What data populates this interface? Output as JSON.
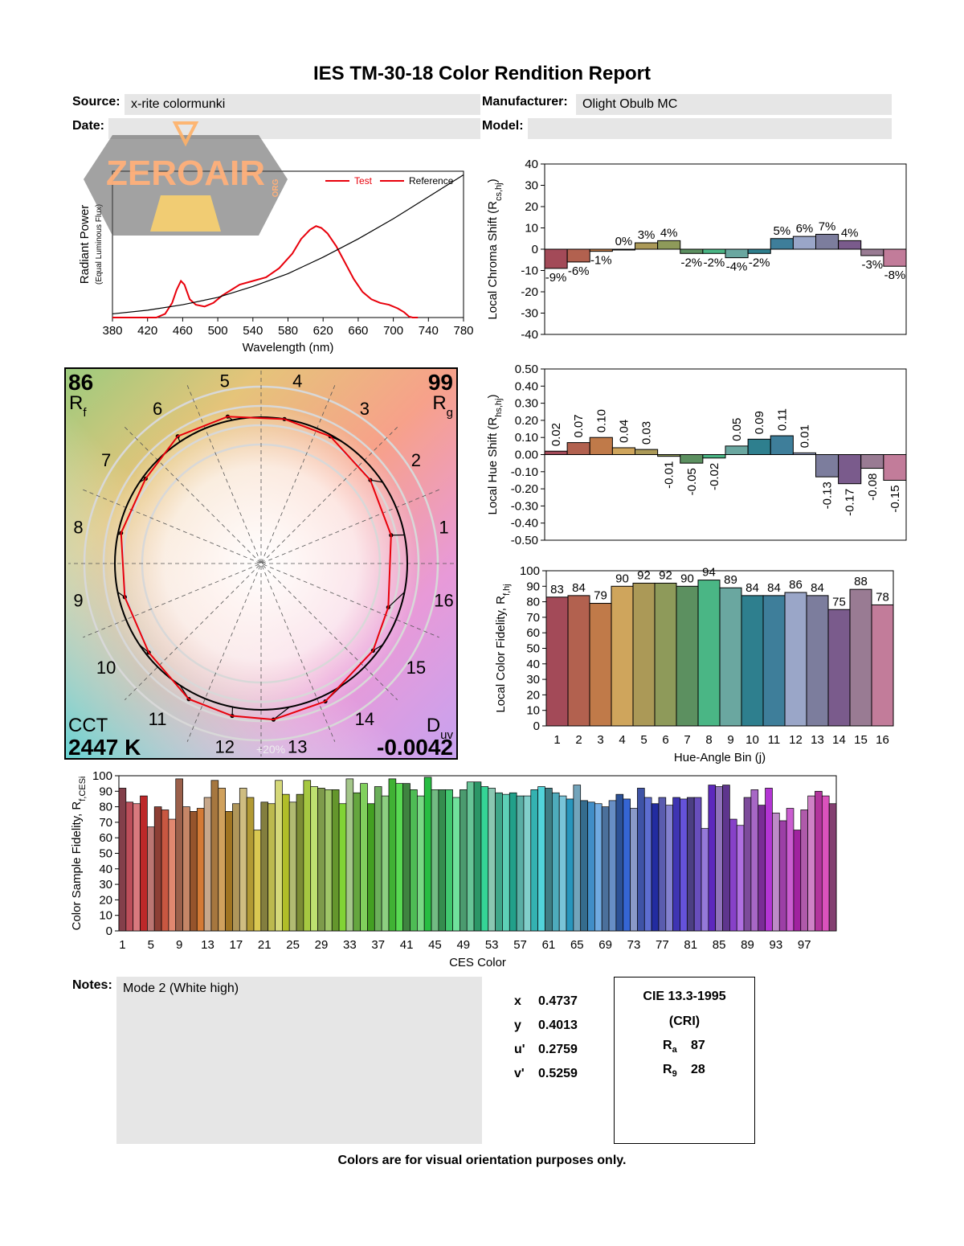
{
  "report": {
    "title": "IES TM-30-18 Color Rendition Report",
    "source_label": "Source:",
    "source_value": "x-rite colormunki",
    "manufacturer_label": "Manufacturer:",
    "manufacturer_value": "Olight Obulb MC",
    "date_label": "Date:",
    "date_value": "",
    "model_label": "Model:",
    "model_value": "",
    "watermark_text": "ZEROAIR",
    "watermark_subtext": "ORG",
    "notes_label": "Notes:",
    "notes_value": "Mode 2 (White high)",
    "footer": "Colors are for visual orientation purposes only."
  },
  "chromaticity": {
    "x_label": "x",
    "x_value": "0.4737",
    "y_label": "y",
    "y_value": "0.4013",
    "u_label": "u'",
    "u_value": "0.2759",
    "v_label": "v'",
    "v_value": "0.5259"
  },
  "cri": {
    "title": "CIE 13.3-1995",
    "subtitle": "(CRI)",
    "ra_label": "R",
    "ra_sub": "a",
    "ra_value": "87",
    "r9_label": "R",
    "r9_sub": "9",
    "r9_value": "28"
  },
  "vector_graphic": {
    "rf_value": "86",
    "rf_label": "R",
    "rf_sub": "f",
    "rg_value": "99",
    "rg_label": "R",
    "rg_sub": "g",
    "cct_label": "CCT",
    "cct_value": "2447 K",
    "duv_label": "D",
    "duv_sub": "uv",
    "duv_value": "-0.0042",
    "ring_label": "+20%",
    "bin_labels": [
      "1",
      "2",
      "3",
      "4",
      "5",
      "6",
      "7",
      "8",
      "9",
      "10",
      "11",
      "12",
      "13",
      "14",
      "15",
      "16"
    ]
  },
  "chart_data": [
    {
      "type": "line",
      "id": "spd",
      "xlabel": "Wavelength (nm)",
      "ylabel": "Radiant Power",
      "ylabel2": "(Equal Luminous Flux)",
      "xlim": [
        380,
        780
      ],
      "xticks": [
        380,
        420,
        460,
        500,
        540,
        580,
        620,
        660,
        700,
        740,
        780
      ],
      "legend": "top-right",
      "series": [
        {
          "name": "Test",
          "color": "#e8000b",
          "x": [
            380,
            430,
            440,
            448,
            453,
            458,
            462,
            468,
            475,
            485,
            495,
            505,
            515,
            525,
            540,
            555,
            570,
            585,
            595,
            605,
            612,
            618,
            625,
            635,
            645,
            655,
            665,
            675,
            685,
            695,
            705,
            712,
            718,
            722,
            728
          ],
          "y": [
            0,
            0,
            0.02,
            0.08,
            0.15,
            0.2,
            0.18,
            0.1,
            0.07,
            0.06,
            0.08,
            0.12,
            0.15,
            0.18,
            0.2,
            0.22,
            0.27,
            0.35,
            0.43,
            0.48,
            0.5,
            0.49,
            0.46,
            0.39,
            0.3,
            0.21,
            0.14,
            0.1,
            0.08,
            0.07,
            0.05,
            0.03,
            0.005,
            0,
            0
          ]
        },
        {
          "name": "Reference",
          "color": "#000000",
          "x": [
            380,
            420,
            460,
            500,
            540,
            580,
            620,
            660,
            700,
            740,
            780
          ],
          "y": [
            0.02,
            0.04,
            0.07,
            0.11,
            0.17,
            0.24,
            0.33,
            0.43,
            0.54,
            0.66,
            0.78
          ]
        }
      ]
    },
    {
      "type": "bar",
      "id": "chroma_shift",
      "ylabel": "Local Chroma Shift (R",
      "ylabel_sub": "cs,hj",
      "ylabel_end": ")",
      "ylim": [
        -40,
        40
      ],
      "yticks": [
        40,
        30,
        20,
        10,
        0,
        -10,
        -20,
        -30,
        -40
      ],
      "categories": [
        "1",
        "2",
        "3",
        "4",
        "5",
        "6",
        "7",
        "8",
        "9",
        "10",
        "11",
        "12",
        "13",
        "14",
        "15",
        "16"
      ],
      "values": [
        -9,
        -6,
        -1,
        0,
        3,
        4,
        -2,
        -2,
        -4,
        -2,
        5,
        6,
        7,
        4,
        -3,
        -8
      ],
      "labels": [
        "-9%",
        "-6%",
        "-1%",
        "0%",
        "3%",
        "4%",
        "-2%",
        "-2%",
        "-4%",
        "-2%",
        "5%",
        "6%",
        "7%",
        "4%",
        "-3%",
        "-8%"
      ]
    },
    {
      "type": "bar",
      "id": "hue_shift",
      "ylabel": "Local Hue Shift (R",
      "ylabel_sub": "hs,hj",
      "ylabel_end": ")",
      "ylim": [
        -0.5,
        0.5
      ],
      "yticks": [
        "0.50",
        "0.40",
        "0.30",
        "0.20",
        "0.10",
        "0.00",
        "-0.10",
        "-0.20",
        "-0.30",
        "-0.40",
        "-0.50"
      ],
      "categories": [
        "1",
        "2",
        "3",
        "4",
        "5",
        "6",
        "7",
        "8",
        "9",
        "10",
        "11",
        "12",
        "13",
        "14",
        "15",
        "16"
      ],
      "values": [
        0.02,
        0.07,
        0.1,
        0.04,
        0.03,
        -0.01,
        -0.05,
        -0.02,
        0.05,
        0.09,
        0.11,
        0.01,
        -0.13,
        -0.17,
        -0.08,
        -0.15
      ],
      "labels": [
        "0.02",
        "0.07",
        "0.10",
        "0.04",
        "0.03",
        "-0.01",
        "-0.05",
        "-0.02",
        "0.05",
        "0.09",
        "0.11",
        "0.01",
        "-0.13",
        "-0.17",
        "-0.08",
        "-0.15"
      ]
    },
    {
      "type": "bar",
      "id": "local_fidelity",
      "xlabel": "Hue-Angle Bin (j)",
      "ylabel": "Local Color Fidelity, R",
      "ylabel_sub": "f,hj",
      "ylim": [
        0,
        100
      ],
      "yticks": [
        100,
        90,
        80,
        70,
        60,
        50,
        40,
        30,
        20,
        10,
        0
      ],
      "categories": [
        "1",
        "2",
        "3",
        "4",
        "5",
        "6",
        "7",
        "8",
        "9",
        "10",
        "11",
        "12",
        "13",
        "14",
        "15",
        "16"
      ],
      "values": [
        83,
        84,
        79,
        90,
        92,
        92,
        90,
        94,
        89,
        84,
        84,
        86,
        84,
        75,
        88,
        78
      ]
    },
    {
      "type": "bar",
      "id": "ces_fidelity",
      "xlabel": "CES Color",
      "ylabel": "Color Sample Fidelity, R",
      "ylabel_sub": "f,CESi",
      "ylim": [
        0,
        100
      ],
      "yticks": [
        100,
        90,
        80,
        70,
        60,
        50,
        40,
        30,
        20,
        10,
        0
      ],
      "xticks": [
        "1",
        "5",
        "9",
        "13",
        "17",
        "21",
        "25",
        "29",
        "33",
        "37",
        "41",
        "45",
        "49",
        "53",
        "57",
        "61",
        "65",
        "69",
        "73",
        "77",
        "81",
        "85",
        "89",
        "93",
        "97"
      ],
      "values": [
        92,
        83,
        82,
        87,
        67,
        80,
        78,
        72,
        98,
        80,
        77,
        79,
        86,
        97,
        92,
        77,
        82,
        92,
        86,
        65,
        83,
        82,
        97,
        88,
        83,
        88,
        97,
        93,
        92,
        91,
        91,
        82,
        98,
        89,
        95,
        82,
        93,
        87,
        98,
        95,
        95,
        91,
        87,
        99,
        91,
        91,
        91,
        86,
        91,
        96,
        96,
        93,
        92,
        89,
        88,
        89,
        87,
        87,
        91,
        93,
        92,
        89,
        87,
        85,
        94,
        84,
        83,
        82,
        80,
        84,
        88,
        85,
        79,
        92,
        86,
        82,
        86,
        81,
        86,
        85,
        86,
        86,
        66,
        94,
        93,
        94,
        72,
        68,
        86,
        91,
        81,
        92,
        76,
        71,
        79,
        65,
        78,
        87,
        90,
        87,
        82
      ]
    }
  ]
}
